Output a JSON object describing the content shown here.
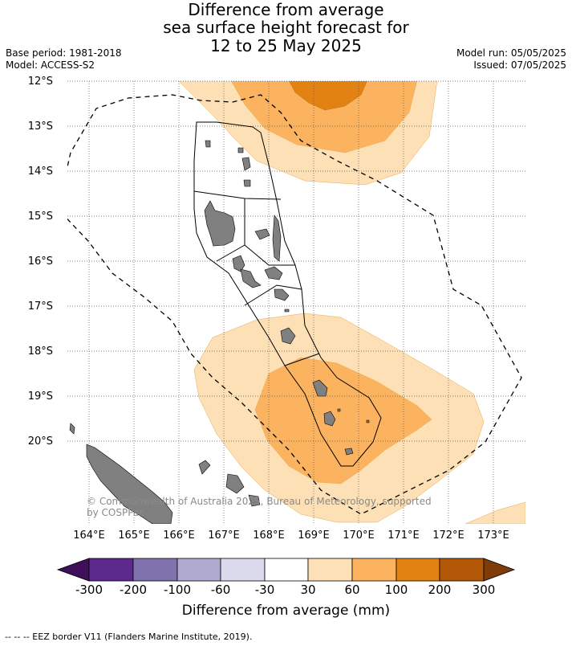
{
  "title": {
    "line1": "Difference from average",
    "line2": "sea surface height forecast for",
    "line3": "12 to 25 May 2025"
  },
  "meta": {
    "base_period": "Base period: 1981-2018",
    "model": "Model: ACCESS-S2",
    "model_run": "Model run: 05/05/2025",
    "issued": "Issued: 07/05/2025"
  },
  "lat_labels": [
    "12°S",
    "13°S",
    "14°S",
    "15°S",
    "16°S",
    "17°S",
    "18°S",
    "19°S",
    "20°S"
  ],
  "lon_labels": [
    "164°E",
    "165°E",
    "166°E",
    "167°E",
    "168°E",
    "169°E",
    "170°E",
    "171°E",
    "172°E",
    "173°E"
  ],
  "copyright": {
    "line1": "© Commonwealth of Australia 2025, Bureau of Meteorology, supported",
    "line2": "by COSPPac"
  },
  "colorbar": {
    "ticks": [
      "-300",
      "-200",
      "-100",
      "-60",
      "-30",
      "30",
      "60",
      "100",
      "200",
      "300"
    ],
    "colors": [
      "#3f0f5c",
      "#5b2a8c",
      "#8073ad",
      "#b0a9d0",
      "#dadaec",
      "#ffffff",
      "#fde0b6",
      "#fbb360",
      "#e18213",
      "#b35806",
      "#7f3b08"
    ],
    "title": "Difference from average (mm)"
  },
  "legend_footer": "--  --  -- EEZ border V11 (Flanders Marine Institute, 2019).",
  "land_color": "#808080"
}
